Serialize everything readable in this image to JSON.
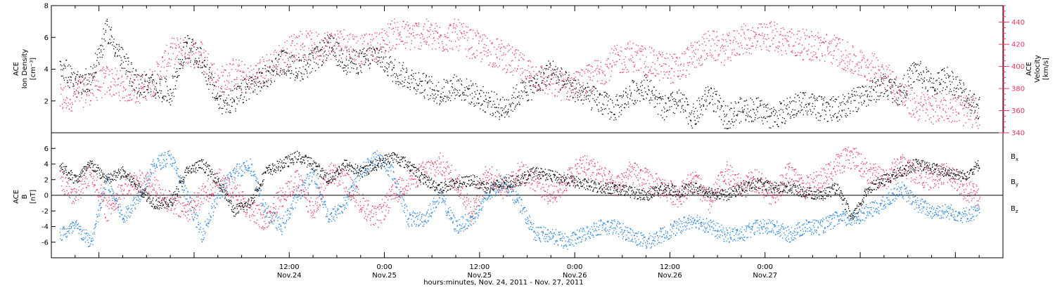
{
  "colors": {
    "black": "#000000",
    "pink": "#e8375e",
    "blue": "#1f7fdd",
    "frame": "#000000"
  },
  "chart_data": [
    {
      "type": "scatter",
      "panel": "top",
      "ylabel_left": [
        "ACE",
        "Ion Density",
        "[cm⁻³]"
      ],
      "ylabel_right": [
        "ACE",
        "Velocity",
        "[km/s]"
      ],
      "ylim_left": [
        0,
        8
      ],
      "ylim_right": [
        340,
        455
      ],
      "yticks_left": [
        2,
        4,
        6,
        8
      ],
      "yticks_right": [
        340,
        360,
        380,
        400,
        420,
        440
      ],
      "x_range_hours": [
        -18,
        102
      ],
      "series": [
        {
          "axis": "left",
          "color_key": "black",
          "x_hours": [
            -17,
            -15,
            -13,
            -11,
            -9,
            -7,
            -5,
            -3,
            -1,
            1,
            3,
            5,
            7,
            9,
            11,
            13,
            15,
            17,
            19,
            21,
            23,
            25,
            27,
            29,
            31,
            33,
            35,
            37,
            39,
            41,
            43,
            45,
            47,
            49,
            51,
            53,
            55,
            57,
            59,
            61,
            63,
            65,
            67,
            69,
            71,
            73,
            75,
            77,
            79,
            81,
            83,
            85,
            87,
            89,
            91,
            93,
            95,
            97,
            99
          ],
          "values": [
            4.5,
            3.0,
            3.5,
            6.5,
            4.5,
            3.0,
            3.0,
            2.5,
            5.5,
            4.5,
            2.0,
            2.0,
            3.0,
            3.5,
            4.5,
            4.0,
            4.5,
            5.5,
            4.5,
            4.5,
            5.0,
            4.0,
            3.5,
            3.0,
            2.5,
            3.0,
            2.5,
            2.0,
            1.5,
            2.5,
            3.0,
            4.0,
            3.0,
            2.5,
            2.0,
            1.5,
            2.5,
            3.0,
            1.5,
            2.0,
            1.0,
            2.5,
            1.0,
            1.5,
            1.5,
            1.0,
            1.5,
            2.0,
            1.5,
            1.5,
            2.0,
            2.5,
            3.0,
            2.5,
            4.0,
            3.0,
            3.5,
            2.5,
            1.5
          ]
        },
        {
          "axis": "right",
          "color_key": "pink",
          "x_hours": [
            -17,
            -15,
            -13,
            -11,
            -9,
            -7,
            -5,
            -3,
            -1,
            1,
            3,
            5,
            7,
            9,
            11,
            13,
            15,
            17,
            19,
            21,
            23,
            25,
            27,
            29,
            31,
            33,
            35,
            37,
            39,
            41,
            43,
            45,
            47,
            49,
            51,
            53,
            55,
            57,
            59,
            61,
            63,
            65,
            67,
            69,
            71,
            73,
            75,
            77,
            79,
            81,
            83,
            85,
            87,
            89,
            91,
            93,
            95,
            97,
            99
          ],
          "values": [
            370,
            375,
            380,
            388,
            382,
            380,
            388,
            412,
            415,
            410,
            385,
            395,
            388,
            398,
            408,
            420,
            418,
            420,
            422,
            415,
            418,
            430,
            428,
            430,
            425,
            430,
            420,
            415,
            410,
            400,
            392,
            385,
            382,
            385,
            395,
            405,
            410,
            405,
            400,
            398,
            410,
            420,
            415,
            425,
            425,
            428,
            422,
            420,
            418,
            415,
            405,
            400,
            395,
            375,
            365,
            362,
            365,
            360,
            358
          ]
        }
      ]
    },
    {
      "type": "scatter",
      "panel": "bottom",
      "ylabel_left": [
        "ACE",
        "B",
        "[nT]"
      ],
      "ylim": [
        -8,
        8
      ],
      "yticks": [
        -6,
        -4,
        -2,
        0,
        2,
        4,
        6
      ],
      "x_range_hours": [
        -18,
        102
      ],
      "legend": [
        "Bx",
        "By",
        "Bz"
      ],
      "series": [
        {
          "name": "Bx",
          "color_key": "black",
          "x_hours": [
            -17,
            -15,
            -13,
            -11,
            -9,
            -7,
            -5,
            -3,
            -1,
            1,
            3,
            5,
            7,
            9,
            11,
            13,
            15,
            17,
            19,
            21,
            23,
            25,
            27,
            29,
            31,
            33,
            35,
            37,
            39,
            41,
            43,
            45,
            47,
            49,
            51,
            53,
            55,
            57,
            59,
            61,
            63,
            65,
            67,
            69,
            71,
            73,
            75,
            77,
            79,
            81,
            83,
            85,
            87,
            89,
            91,
            93,
            95,
            97,
            99
          ],
          "values": [
            4.0,
            2.0,
            4.0,
            2.0,
            3.0,
            1.0,
            -1.0,
            -1.0,
            3.0,
            4.0,
            2.0,
            -2.0,
            -1.0,
            3.0,
            4.0,
            5.0,
            4.0,
            2.0,
            4.0,
            3.0,
            4.0,
            5.0,
            4.0,
            2.0,
            1.0,
            1.5,
            2.0,
            1.0,
            1.5,
            2.0,
            3.0,
            2.5,
            2.0,
            1.5,
            1.0,
            1.0,
            0.5,
            0.0,
            1.0,
            0.5,
            1.0,
            0.5,
            0.0,
            1.0,
            1.5,
            1.0,
            1.0,
            0.5,
            0.0,
            1.0,
            -3.0,
            1.0,
            2.0,
            3.0,
            4.0,
            3.5,
            3.0,
            2.5,
            4.0
          ]
        },
        {
          "name": "By",
          "color_key": "blue",
          "x_hours": [
            -17,
            -15,
            -13,
            -11,
            -9,
            -7,
            -5,
            -3,
            -1,
            1,
            3,
            5,
            7,
            9,
            11,
            13,
            15,
            17,
            19,
            21,
            23,
            25,
            27,
            29,
            31,
            33,
            35,
            37,
            39,
            41,
            43,
            45,
            47,
            49,
            51,
            53,
            55,
            57,
            59,
            61,
            63,
            65,
            67,
            69,
            71,
            73,
            75,
            77,
            79,
            81,
            83,
            85,
            87,
            89,
            91,
            93,
            95,
            97,
            99
          ],
          "values": [
            -5.0,
            -4.0,
            -6.0,
            2.0,
            -3.0,
            0.0,
            4.0,
            5.0,
            0.0,
            -5.0,
            0.0,
            3.0,
            4.0,
            -2.0,
            -4.0,
            0.0,
            3.0,
            -3.0,
            -1.0,
            3.0,
            5.0,
            3.0,
            -3.0,
            -3.0,
            0.0,
            -4.0,
            -3.0,
            0.0,
            2.0,
            -1.0,
            -5.0,
            -5.0,
            -6.0,
            -5.0,
            -4.0,
            -4.0,
            -5.0,
            -6.0,
            -5.0,
            -4.0,
            -3.0,
            -4.0,
            -5.0,
            -5.0,
            -4.0,
            -4.0,
            -5.0,
            -4.0,
            -4.0,
            -3.0,
            -3.0,
            -2.0,
            -1.0,
            1.0,
            -1.0,
            -2.0,
            -2.0,
            -2.5,
            -2.0
          ]
        },
        {
          "name": "Bz",
          "color_key": "pink",
          "x_hours": [
            -17,
            -15,
            -13,
            -11,
            -9,
            -7,
            -5,
            -3,
            -1,
            1,
            3,
            5,
            7,
            9,
            11,
            13,
            15,
            17,
            19,
            21,
            23,
            25,
            27,
            29,
            31,
            33,
            35,
            37,
            39,
            41,
            43,
            45,
            47,
            49,
            51,
            53,
            55,
            57,
            59,
            61,
            63,
            65,
            67,
            69,
            71,
            73,
            75,
            77,
            79,
            81,
            83,
            85,
            87,
            89,
            91,
            93,
            95,
            97,
            99
          ],
          "values": [
            2.0,
            0.0,
            3.0,
            -2.0,
            1.0,
            2.0,
            1.0,
            -1.0,
            -2.0,
            0.0,
            2.0,
            1.0,
            -2.0,
            -3.0,
            0.0,
            2.0,
            -2.0,
            3.0,
            2.0,
            -1.0,
            -3.0,
            0.0,
            2.0,
            3.0,
            4.0,
            2.0,
            -2.0,
            3.0,
            1.0,
            3.0,
            2.0,
            0.0,
            2.0,
            4.0,
            3.0,
            1.0,
            3.0,
            2.0,
            1.0,
            0.0,
            2.0,
            -1.0,
            3.0,
            1.0,
            2.0,
            0.0,
            3.0,
            1.0,
            2.0,
            4.0,
            5.0,
            3.0,
            2.0,
            4.0,
            3.0,
            2.0,
            3.0,
            1.0,
            0.0
          ]
        }
      ]
    }
  ],
  "x_axis": {
    "tick_labels": [
      {
        "hours": 12,
        "time": "12:00",
        "day": "Nov.24"
      },
      {
        "hours": 24,
        "time": "0:00",
        "day": "Nov.25"
      },
      {
        "hours": 36,
        "time": "12:00",
        "day": "Nov.25"
      },
      {
        "hours": 48,
        "time": "0:00",
        "day": "Nov.26"
      },
      {
        "hours": 60,
        "time": "12:00",
        "day": "Nov.26"
      },
      {
        "hours": 72,
        "time": "0:00",
        "day": "Nov.27"
      }
    ],
    "xlabel": "hours:minutes, Nov. 24, 2011 - Nov. 27, 2011"
  },
  "legend_labels": {
    "bx": "B",
    "bx_sub": "x",
    "by": "B",
    "by_sub": "y",
    "bz": "B",
    "bz_sub": "z"
  }
}
